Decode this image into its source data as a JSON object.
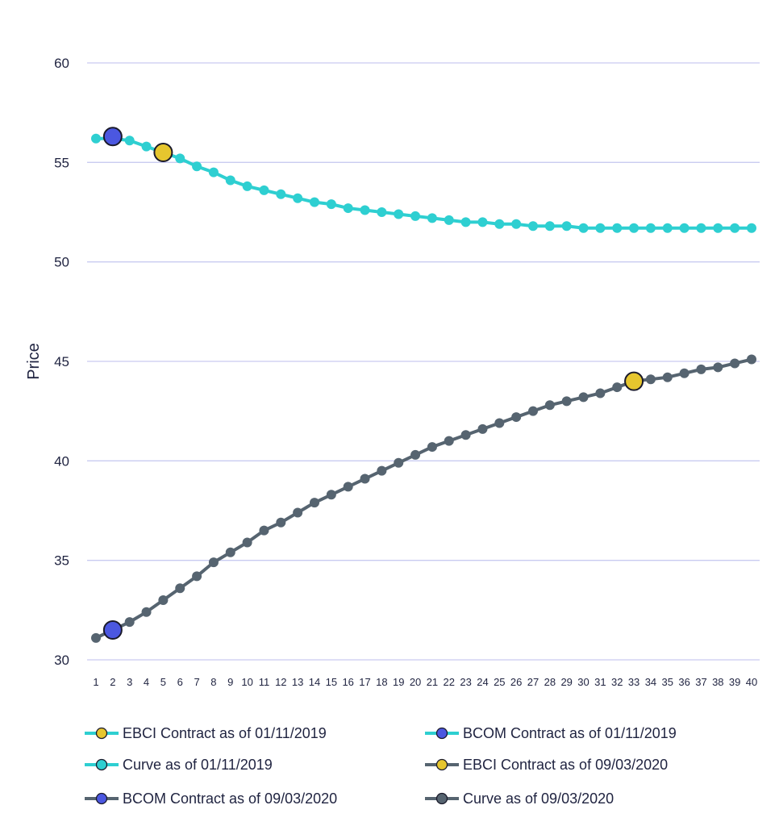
{
  "chart_data": {
    "type": "line",
    "title": "",
    "xlabel": "",
    "ylabel": "Price",
    "ylim": [
      30,
      60
    ],
    "yticks": [
      30,
      35,
      40,
      45,
      50,
      55,
      60
    ],
    "grid": true,
    "legend_position": "bottom",
    "categories": [
      "1",
      "2",
      "3",
      "4",
      "5",
      "6",
      "7",
      "8",
      "9",
      "10",
      "11",
      "12",
      "13",
      "14",
      "15",
      "16",
      "17",
      "18",
      "19",
      "20",
      "21",
      "22",
      "23",
      "24",
      "25",
      "26",
      "27",
      "28",
      "29",
      "30",
      "31",
      "32",
      "33",
      "34",
      "35",
      "36",
      "37",
      "38",
      "39",
      "40"
    ],
    "series": [
      {
        "name": "Curve as of 01/11/2019",
        "color": "#2ecfd1",
        "values": [
          56.2,
          56.2,
          56.1,
          55.8,
          55.5,
          55.2,
          54.8,
          54.5,
          54.1,
          53.8,
          53.6,
          53.4,
          53.2,
          53.0,
          52.9,
          52.7,
          52.6,
          52.5,
          52.4,
          52.3,
          52.2,
          52.1,
          52.0,
          52.0,
          51.9,
          51.9,
          51.8,
          51.8,
          51.8,
          51.7,
          51.7,
          51.7,
          51.7,
          51.7,
          51.7,
          51.7,
          51.7,
          51.7,
          51.7,
          51.7
        ]
      },
      {
        "name": "Curve as of 09/03/2020",
        "color": "#566470",
        "values": [
          31.1,
          31.5,
          31.9,
          32.4,
          33.0,
          33.6,
          34.2,
          34.9,
          35.4,
          35.9,
          36.5,
          36.9,
          37.4,
          37.9,
          38.3,
          38.7,
          39.1,
          39.5,
          39.9,
          40.3,
          40.7,
          41.0,
          41.3,
          41.6,
          41.9,
          42.2,
          42.5,
          42.8,
          43.0,
          43.2,
          43.4,
          43.7,
          44.0,
          44.1,
          44.2,
          44.4,
          44.6,
          44.7,
          44.9,
          45.1
        ]
      }
    ],
    "markers": [
      {
        "name": "EBCI Contract as of 01/11/2019",
        "x": "5",
        "y": 55.5,
        "fill": "#e6c62e",
        "line": "#2ecfd1"
      },
      {
        "name": "BCOM Contract as of 01/11/2019",
        "x": "2",
        "y": 56.3,
        "fill": "#4b57e0",
        "line": "#2ecfd1"
      },
      {
        "name": "EBCI Contract as of 09/03/2020",
        "x": "33",
        "y": 44.0,
        "fill": "#e6c62e",
        "line": "#566470"
      },
      {
        "name": "BCOM Contract as of 09/03/2020",
        "x": "2",
        "y": 31.5,
        "fill": "#4b57e0",
        "line": "#566470"
      }
    ],
    "legend": [
      {
        "label": "EBCI Contract as of 01/11/2019",
        "line": "#2ecfd1",
        "fill": "#e6c62e"
      },
      {
        "label": "BCOM Contract as of 01/11/2019",
        "line": "#2ecfd1",
        "fill": "#4b57e0"
      },
      {
        "label": "Curve as of 01/11/2019",
        "line": "#2ecfd1",
        "fill": "#2ecfd1"
      },
      {
        "label": "EBCI Contract as of 09/03/2020",
        "line": "#566470",
        "fill": "#e6c62e"
      },
      {
        "label": "BCOM Contract as of 09/03/2020",
        "line": "#566470",
        "fill": "#4b57e0"
      },
      {
        "label": "Curve as of 09/03/2020",
        "line": "#566470",
        "fill": "#566470"
      }
    ],
    "grid_color": "#c9cbf0"
  }
}
